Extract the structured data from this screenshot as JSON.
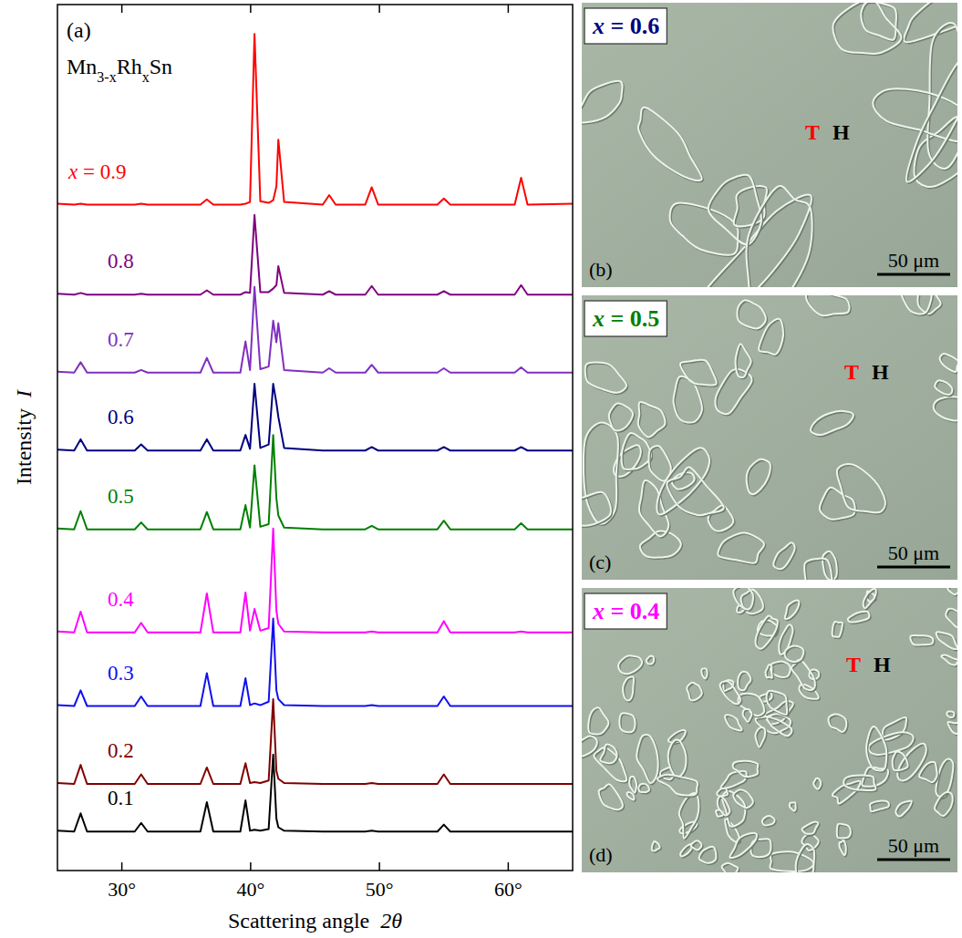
{
  "chart_data": {
    "type": "line",
    "title": "Mn3-xRhxSn",
    "panel_label": "(a)",
    "x_label": "Scattering angle 2θ",
    "y_label": "Intensity I",
    "x": [
      25,
      26.3,
      26.8,
      27.3,
      31.0,
      31.5,
      32.0,
      36.1,
      36.6,
      37.1,
      39.2,
      39.6,
      39.95,
      40.3,
      40.75,
      41.4,
      41.75,
      42.0,
      42.15,
      42.6,
      45.6,
      46.1,
      46.6,
      48.9,
      49.4,
      49.9,
      54.5,
      55.0,
      55.5,
      60.5,
      61.0,
      61.5,
      65
    ],
    "xlim": [
      25,
      65
    ],
    "xticks": [
      {
        "value": 30,
        "label": "30°"
      },
      {
        "value": 40,
        "label": "40°"
      },
      {
        "value": 50,
        "label": "50°"
      },
      {
        "value": 60,
        "label": "60°"
      }
    ],
    "ylim": [
      0,
      100
    ],
    "tick_labels": "x",
    "series": [
      {
        "name": "0.1",
        "color": "#000000",
        "values": [
          4.6,
          4.5,
          6.6,
          4.5,
          4.5,
          5.5,
          4.5,
          4.5,
          7.9,
          4.5,
          4.5,
          8.1,
          4.6,
          4.7,
          4.6,
          4.8,
          13.4,
          6.0,
          5.0,
          4.6,
          4.5,
          4.5,
          4.5,
          4.5,
          4.6,
          4.5,
          4.5,
          5.3,
          4.5,
          4.5,
          4.5,
          4.5,
          4.5
        ]
      },
      {
        "name": "0.2",
        "color": "#800000",
        "values": [
          10.1,
          10,
          12.2,
          10,
          10,
          11.1,
          10,
          10,
          11.9,
          10,
          10,
          12.4,
          10.1,
          10.2,
          10.1,
          10.4,
          19.8,
          11.5,
          10.6,
          10.1,
          10,
          10,
          10,
          10,
          10.1,
          10,
          10,
          11.1,
          10,
          10,
          10,
          10,
          10
        ]
      },
      {
        "name": "0.3",
        "color": "#1010f0",
        "values": [
          19.1,
          19,
          20.8,
          19,
          19,
          20.1,
          19,
          19,
          22.8,
          19,
          19,
          22.2,
          19.1,
          19.3,
          19.1,
          19.5,
          29.1,
          20.8,
          19.8,
          19.1,
          19,
          19,
          19,
          19,
          19.1,
          19,
          19,
          20.1,
          19,
          19,
          19,
          19,
          19
        ]
      },
      {
        "name": "0.4",
        "color": "#ff00ff",
        "values": [
          27.6,
          27.5,
          29.9,
          27.5,
          27.5,
          28.6,
          27.5,
          27.5,
          32.0,
          27.5,
          27.5,
          32.1,
          27.7,
          30.2,
          27.7,
          28.0,
          39.5,
          30.0,
          28.5,
          27.6,
          27.5,
          27.5,
          27.5,
          27.5,
          27.6,
          27.5,
          27.5,
          28.8,
          27.5,
          27.5,
          27.6,
          27.5,
          27.5
        ]
      },
      {
        "name": "0.5",
        "color": "#008000",
        "values": [
          39.5,
          39.4,
          41.5,
          39.4,
          39.4,
          40.2,
          39.4,
          39.4,
          41.4,
          39.4,
          39.4,
          42.2,
          39.6,
          46.8,
          39.7,
          40.0,
          50.3,
          43.0,
          41.0,
          39.6,
          39.4,
          39.4,
          39.4,
          39.4,
          39.8,
          39.4,
          39.4,
          40.4,
          39.4,
          39.4,
          40.1,
          39.4,
          39.4
        ]
      },
      {
        "name": "0.6",
        "color": "#000080",
        "values": [
          48.6,
          48.5,
          49.8,
          48.5,
          48.5,
          49.2,
          48.5,
          48.5,
          49.8,
          48.5,
          48.5,
          50.3,
          48.7,
          56.2,
          48.8,
          49.2,
          56.2,
          54.0,
          52.4,
          48.8,
          48.5,
          48.5,
          48.5,
          48.5,
          48.9,
          48.5,
          48.5,
          48.9,
          48.5,
          48.5,
          48.9,
          48.5,
          48.5
        ]
      },
      {
        "name": "0.7",
        "color": "#8030c0",
        "values": [
          57.6,
          57.5,
          58.7,
          57.5,
          57.5,
          57.8,
          57.5,
          57.5,
          59.2,
          57.5,
          57.5,
          61.1,
          57.8,
          67.4,
          57.9,
          58.2,
          63.5,
          61.0,
          63.2,
          57.8,
          57.5,
          58.0,
          57.5,
          57.5,
          58.4,
          57.5,
          57.5,
          58.0,
          57.5,
          57.5,
          58.1,
          57.5,
          57.5
        ]
      },
      {
        "name": "0.8",
        "color": "#800080",
        "values": [
          66.6,
          66.5,
          66.7,
          66.5,
          66.5,
          66.6,
          66.5,
          66.5,
          67.0,
          66.5,
          66.5,
          66.8,
          66.7,
          75.7,
          66.8,
          66.8,
          67.2,
          67.6,
          69.8,
          66.7,
          66.5,
          66.9,
          66.5,
          66.5,
          67.5,
          66.5,
          66.5,
          66.9,
          66.5,
          66.5,
          67.6,
          66.5,
          66.5
        ]
      },
      {
        "name": "x = 0.9",
        "color": "#ff0000",
        "values": [
          77.0,
          76.9,
          77.0,
          76.9,
          76.9,
          77.0,
          76.9,
          76.9,
          77.5,
          76.9,
          76.9,
          77.0,
          77.2,
          96.6,
          77.3,
          77.1,
          77.4,
          79.0,
          84.4,
          77.2,
          76.9,
          78.0,
          76.9,
          76.9,
          78.9,
          76.9,
          76.9,
          77.6,
          76.9,
          76.9,
          80.0,
          76.9,
          77.0
        ]
      }
    ]
  },
  "micrographs": [
    {
      "label": "x = 0.6",
      "label_color": "#000080",
      "panel_label": "(b)",
      "markers": [
        "T",
        "H"
      ],
      "marker_colors": [
        "#ff0000",
        "#000000"
      ],
      "scale_bar": "50 μm"
    },
    {
      "label": "x = 0.5",
      "label_color": "#008000",
      "panel_label": "(c)",
      "markers": [
        "T",
        "H"
      ],
      "marker_colors": [
        "#ff0000",
        "#000000"
      ],
      "scale_bar": "50 μm"
    },
    {
      "label": "x = 0.4",
      "label_color": "#ff00ff",
      "panel_label": "(d)",
      "markers": [
        "T",
        "H"
      ],
      "marker_colors": [
        "#ff0000",
        "#000000"
      ],
      "scale_bar": "50 μm"
    }
  ]
}
